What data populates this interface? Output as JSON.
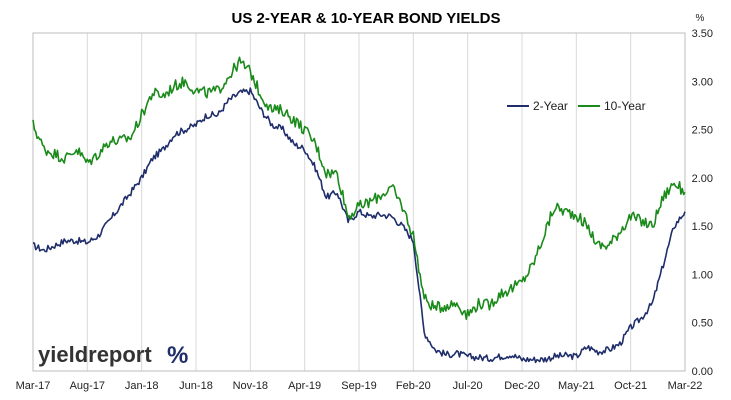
{
  "chart_data": {
    "type": "line",
    "title": "US 2-YEAR & 10-YEAR BOND YIELDS",
    "y_unit": "%",
    "ylim": [
      0,
      3.5
    ],
    "y_ticks": [
      "0.00",
      "0.50",
      "1.00",
      "1.50",
      "2.00",
      "2.50",
      "3.00",
      "3.50"
    ],
    "x_ticks": [
      "Mar-17",
      "Aug-17",
      "Jan-18",
      "Jun-18",
      "Nov-18",
      "Apr-19",
      "Sep-19",
      "Feb-20",
      "Jul-20",
      "Dec-20",
      "May-21",
      "Oct-21",
      "Mar-22"
    ],
    "grid": "vertical only",
    "legend_position": "top-right",
    "x": [
      "Mar-17",
      "Apr-17",
      "May-17",
      "Jun-17",
      "Jul-17",
      "Aug-17",
      "Sep-17",
      "Oct-17",
      "Nov-17",
      "Dec-17",
      "Jan-18",
      "Feb-18",
      "Mar-18",
      "Apr-18",
      "May-18",
      "Jun-18",
      "Jul-18",
      "Aug-18",
      "Sep-18",
      "Oct-18",
      "Nov-18",
      "Dec-18",
      "Jan-19",
      "Feb-19",
      "Mar-19",
      "Apr-19",
      "May-19",
      "Jun-19",
      "Jul-19",
      "Aug-19",
      "Sep-19",
      "Oct-19",
      "Nov-19",
      "Dec-19",
      "Jan-20",
      "Feb-20",
      "Mar-20",
      "Apr-20",
      "May-20",
      "Jun-20",
      "Jul-20",
      "Aug-20",
      "Sep-20",
      "Oct-20",
      "Nov-20",
      "Dec-20",
      "Jan-21",
      "Feb-21",
      "Mar-21",
      "Apr-21",
      "May-21",
      "Jun-21",
      "Jul-21",
      "Aug-21",
      "Sep-21",
      "Oct-21",
      "Nov-21",
      "Dec-21",
      "Jan-22",
      "Feb-22",
      "Mar-22"
    ],
    "series": [
      {
        "name": "2-Year",
        "color": "#1f2e6b",
        "values": [
          1.3,
          1.25,
          1.3,
          1.35,
          1.35,
          1.33,
          1.4,
          1.55,
          1.7,
          1.85,
          2.0,
          2.2,
          2.3,
          2.45,
          2.5,
          2.55,
          2.65,
          2.65,
          2.8,
          2.88,
          2.9,
          2.7,
          2.55,
          2.5,
          2.35,
          2.3,
          2.1,
          1.8,
          1.85,
          1.55,
          1.65,
          1.6,
          1.62,
          1.6,
          1.5,
          1.35,
          0.4,
          0.22,
          0.17,
          0.18,
          0.15,
          0.14,
          0.13,
          0.15,
          0.17,
          0.12,
          0.12,
          0.12,
          0.15,
          0.16,
          0.15,
          0.25,
          0.2,
          0.22,
          0.28,
          0.45,
          0.55,
          0.7,
          1.1,
          1.5,
          1.65
        ]
      },
      {
        "name": "10-Year",
        "color": "#1a8a1a",
        "values": [
          2.55,
          2.3,
          2.25,
          2.2,
          2.3,
          2.15,
          2.25,
          2.38,
          2.38,
          2.42,
          2.65,
          2.88,
          2.85,
          2.95,
          3.0,
          2.9,
          2.88,
          2.9,
          3.05,
          3.2,
          3.1,
          2.85,
          2.7,
          2.7,
          2.6,
          2.5,
          2.35,
          2.05,
          2.05,
          1.6,
          1.7,
          1.75,
          1.82,
          1.9,
          1.7,
          1.4,
          0.75,
          0.65,
          0.68,
          0.7,
          0.58,
          0.7,
          0.68,
          0.8,
          0.85,
          0.92,
          1.1,
          1.4,
          1.7,
          1.65,
          1.62,
          1.5,
          1.3,
          1.3,
          1.45,
          1.6,
          1.55,
          1.5,
          1.8,
          1.95,
          1.85
        ]
      }
    ]
  },
  "logo": {
    "word": "yieldreport",
    "symbol": "%"
  }
}
